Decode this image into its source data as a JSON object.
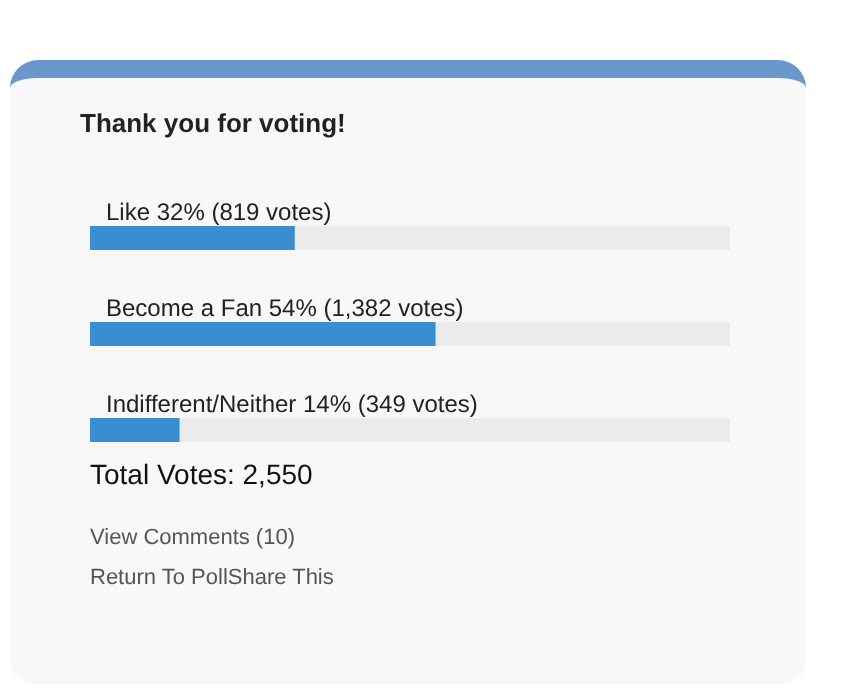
{
  "chart_data": {
    "type": "bar",
    "orientation": "horizontal",
    "title": "Thank you for voting!",
    "categories": [
      null,
      null,
      null
    ],
    "values": [
      32,
      54,
      14
    ],
    "value_labels": [
      "Like 32% (819 votes)",
      "Become a Fan 54% (1,382 votes)",
      "Indifferent/Neither 14% (349 votes)"
    ],
    "color": "#3a8dd0",
    "tick_labels": false,
    "annotations": [
      "Total Votes: 2,550",
      "View Comments (10)",
      "Return To PollShare This"
    ]
  }
}
